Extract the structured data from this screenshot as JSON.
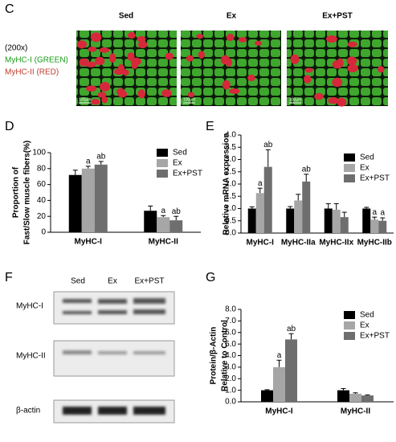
{
  "panel_c": {
    "letter": "C",
    "columns": [
      "Sed",
      "Ex",
      "Ex+PST"
    ],
    "magnification": "(200x)",
    "stain_1": "MyHC-I (GREEN)",
    "stain_2": "MyHC-II (RED)",
    "scale_bar": "100μm"
  },
  "panel_f": {
    "letter": "F",
    "columns": [
      "Sed",
      "Ex",
      "Ex+PST"
    ],
    "rows": [
      "MyHC-I",
      "MyHC-II",
      "β-actin"
    ]
  },
  "chart_data": [
    {
      "type": "bar",
      "panel_label": "D",
      "y_label": [
        "Proportion of",
        "Fast/Slow muscle fibers(%)"
      ],
      "categories": [
        "MyHC-I",
        "MyHC-II"
      ],
      "series": [
        {
          "name": "Sed",
          "color": "#000000",
          "values": [
            72,
            27
          ],
          "errors": [
            6,
            6
          ],
          "annotations": [
            null,
            null
          ]
        },
        {
          "name": "Ex",
          "color": "#a6a6a6",
          "values": [
            80,
            19
          ],
          "errors": [
            3,
            2
          ],
          "annotations": [
            "a",
            "a"
          ]
        },
        {
          "name": "Ex+PST",
          "color": "#6e6e6e",
          "values": [
            85,
            15
          ],
          "errors": [
            4,
            5
          ],
          "annotations": [
            "ab",
            "ab"
          ]
        }
      ],
      "ylim": [
        0,
        100
      ],
      "yticks": [
        0,
        20,
        40,
        60,
        80,
        100
      ]
    },
    {
      "type": "bar",
      "panel_label": "E",
      "y_label": [
        "Relative mRNA expression"
      ],
      "categories": [
        "MyHC-I",
        "MyHC-IIa",
        "MyHC-IIx",
        "MyHC-IIb"
      ],
      "series": [
        {
          "name": "Sed",
          "color": "#000000",
          "values": [
            1.0,
            1.0,
            1.0,
            1.0
          ],
          "errors": [
            0.07,
            0.08,
            0.2,
            0.05
          ],
          "annotations": [
            null,
            null,
            null,
            null
          ]
        },
        {
          "name": "Ex",
          "color": "#a6a6a6",
          "values": [
            1.63,
            1.33,
            0.95,
            0.55
          ],
          "errors": [
            0.2,
            0.25,
            0.25,
            0.1
          ],
          "annotations": [
            "a",
            null,
            null,
            "a"
          ]
        },
        {
          "name": "Ex+PST",
          "color": "#6e6e6e",
          "values": [
            2.7,
            2.1,
            0.65,
            0.5
          ],
          "errors": [
            0.7,
            0.3,
            0.2,
            0.12
          ],
          "annotations": [
            "ab",
            "ab",
            null,
            "a"
          ]
        }
      ],
      "ylim": [
        0,
        4
      ],
      "yticks": [
        {
          "value": 0,
          "label": "0.0"
        },
        0.5,
        {
          "value": 1,
          "label": "1.0"
        },
        1.5,
        {
          "value": 2,
          "label": "2.0"
        },
        2.5,
        {
          "value": 3,
          "label": "3.0"
        },
        3.5,
        {
          "value": 4,
          "label": "4.0"
        }
      ]
    },
    {
      "type": "bar",
      "panel_label": "G",
      "y_label": [
        "Protein/β-Actin",
        "Relative to Control"
      ],
      "categories": [
        "MyHC-I",
        "MyHC-II"
      ],
      "series": [
        {
          "name": "Sed",
          "color": "#000000",
          "values": [
            1.0,
            1.0
          ],
          "errors": [
            0.05,
            0.15
          ],
          "annotations": [
            null,
            null
          ]
        },
        {
          "name": "Ex",
          "color": "#a6a6a6",
          "values": [
            3.0,
            0.7
          ],
          "errors": [
            0.6,
            0.08
          ],
          "annotations": [
            "a",
            null
          ]
        },
        {
          "name": "Ex+PST",
          "color": "#6e6e6e",
          "values": [
            5.4,
            0.55
          ],
          "errors": [
            0.5,
            0.05
          ],
          "annotations": [
            "ab",
            null
          ]
        }
      ],
      "ylim": [
        0,
        8
      ],
      "yticks": [
        {
          "value": 0,
          "label": "0.0"
        },
        {
          "value": 1,
          "label": "1.0"
        },
        {
          "value": 2,
          "label": "2.0"
        },
        {
          "value": 3,
          "label": "3.0"
        },
        {
          "value": 4,
          "label": "4.0"
        },
        {
          "value": 5,
          "label": "5.0"
        },
        {
          "value": 6,
          "label": "6.0"
        },
        {
          "value": 7,
          "label": "7.0"
        },
        {
          "value": 8,
          "label": "8.0"
        }
      ]
    }
  ]
}
